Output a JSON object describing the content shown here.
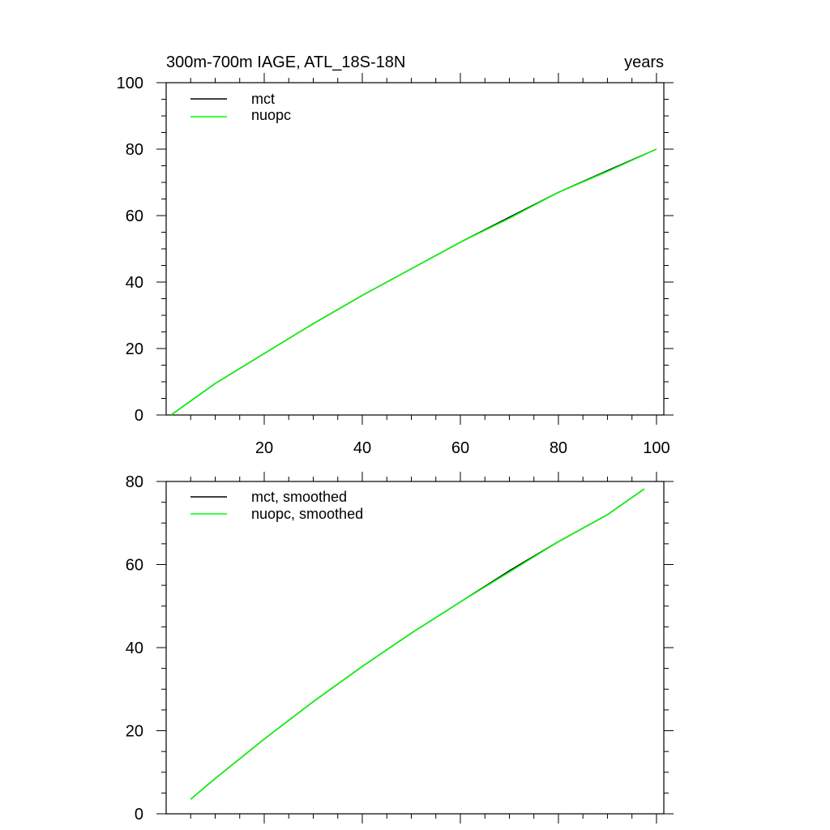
{
  "chart_data": [
    {
      "type": "line",
      "title": "300m-700m IAGE, ATL_18S-18N",
      "title_right": "years",
      "xlim": [
        0,
        101.5
      ],
      "ylim": [
        0,
        100
      ],
      "xticks": [
        20,
        40,
        60,
        80,
        100
      ],
      "xtick_labels": [
        "20",
        "40",
        "60",
        "80",
        "100"
      ],
      "yticks": [
        0,
        20,
        40,
        60,
        80,
        100
      ],
      "ytick_labels": [
        "0",
        "20",
        "40",
        "60",
        "80",
        "100"
      ],
      "grid": false,
      "legend_position": "top-left",
      "series": [
        {
          "name": "mct",
          "color": "#000000",
          "x": [
            1,
            10,
            20,
            30,
            40,
            50,
            60,
            70,
            80,
            90,
            100
          ],
          "y": [
            0,
            9.5,
            18.5,
            27.5,
            36,
            44,
            52,
            59.5,
            67,
            73.5,
            80
          ]
        },
        {
          "name": "nuopc",
          "color": "#00ff00",
          "x": [
            1,
            10,
            20,
            30,
            40,
            50,
            60,
            70,
            80,
            90,
            100
          ],
          "y": [
            0,
            9.5,
            18.5,
            27.5,
            36,
            44,
            52,
            59.2,
            67,
            73.3,
            80
          ]
        }
      ]
    },
    {
      "type": "line",
      "xlim": [
        0,
        101.5
      ],
      "ylim": [
        0,
        80
      ],
      "xticks": [
        20,
        40,
        60,
        80,
        100
      ],
      "yticks": [
        0,
        20,
        40,
        60,
        80
      ],
      "ytick_labels": [
        "0",
        "20",
        "40",
        "60",
        "80"
      ],
      "grid": false,
      "legend_position": "top-left",
      "series": [
        {
          "name": "mct, smoothed",
          "color": "#000000",
          "x": [
            5,
            10,
            20,
            30,
            40,
            50,
            60,
            70,
            80,
            90,
            97.5
          ],
          "y": [
            3.5,
            8.5,
            18,
            27,
            35.5,
            43.5,
            51,
            58.5,
            65.5,
            72,
            78.2
          ]
        },
        {
          "name": "nuopc, smoothed",
          "color": "#00ff00",
          "x": [
            5,
            10,
            20,
            30,
            40,
            50,
            60,
            70,
            80,
            90,
            97.5
          ],
          "y": [
            3.5,
            8.5,
            18,
            27,
            35.5,
            43.5,
            51,
            58.2,
            65.5,
            72,
            78.2
          ]
        }
      ]
    }
  ]
}
